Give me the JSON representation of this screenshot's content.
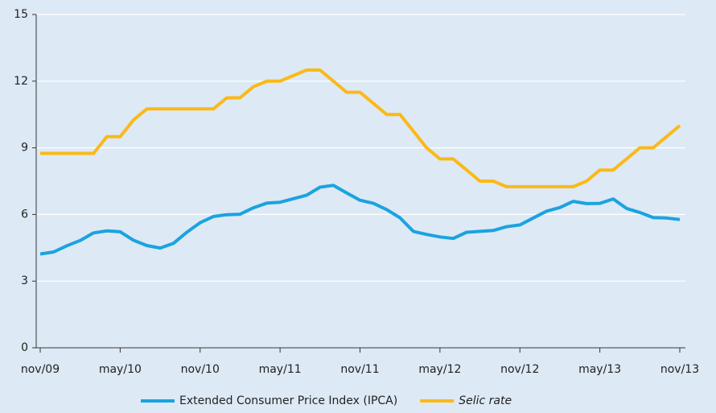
{
  "chart_data": {
    "type": "line",
    "categories": [
      "nov/09",
      null,
      null,
      null,
      null,
      null,
      "may/10",
      null,
      null,
      null,
      null,
      null,
      "nov/10",
      null,
      null,
      null,
      null,
      null,
      "may/11",
      null,
      null,
      null,
      null,
      null,
      "nov/11",
      null,
      null,
      null,
      null,
      null,
      "may/12",
      null,
      null,
      null,
      null,
      null,
      "nov/12",
      null,
      null,
      null,
      null,
      null,
      "may/13",
      null,
      null,
      null,
      null,
      null,
      "nov/13"
    ],
    "series": [
      {
        "name": "Extended Consumer Price Index (IPCA)",
        "color": "#1aa3e0",
        "italic": false,
        "values": [
          4.22,
          4.31,
          4.59,
          4.83,
          5.17,
          5.26,
          5.22,
          4.84,
          4.6,
          4.49,
          4.7,
          5.2,
          5.63,
          5.91,
          5.99,
          6.01,
          6.3,
          6.51,
          6.55,
          6.71,
          6.87,
          7.23,
          7.31,
          6.97,
          6.64,
          6.5,
          6.22,
          5.85,
          5.24,
          5.1,
          4.99,
          4.92,
          5.2,
          5.24,
          5.28,
          5.45,
          5.53,
          5.84,
          6.15,
          6.31,
          6.59,
          6.49,
          6.5,
          6.7,
          6.27,
          6.09,
          5.86,
          5.84,
          5.77
        ]
      },
      {
        "name": "Selic rate",
        "color": "#fbb917",
        "italic": true,
        "values": [
          8.75,
          8.75,
          8.75,
          8.75,
          8.75,
          9.5,
          9.5,
          10.25,
          10.75,
          10.75,
          10.75,
          10.75,
          10.75,
          10.75,
          11.25,
          11.25,
          11.75,
          12,
          12,
          12.25,
          12.5,
          12.5,
          12,
          11.5,
          11.5,
          11,
          10.5,
          10.5,
          9.75,
          9,
          8.5,
          8.5,
          8,
          7.5,
          7.5,
          7.25,
          7.25,
          7.25,
          7.25,
          7.25,
          7.25,
          7.5,
          8,
          8,
          8.5,
          9,
          9,
          9.5,
          10
        ]
      }
    ],
    "ylim": [
      0,
      15
    ],
    "yticks": [
      0,
      3,
      6,
      9,
      12,
      15
    ],
    "grid": true,
    "background": "#dde9f5"
  }
}
